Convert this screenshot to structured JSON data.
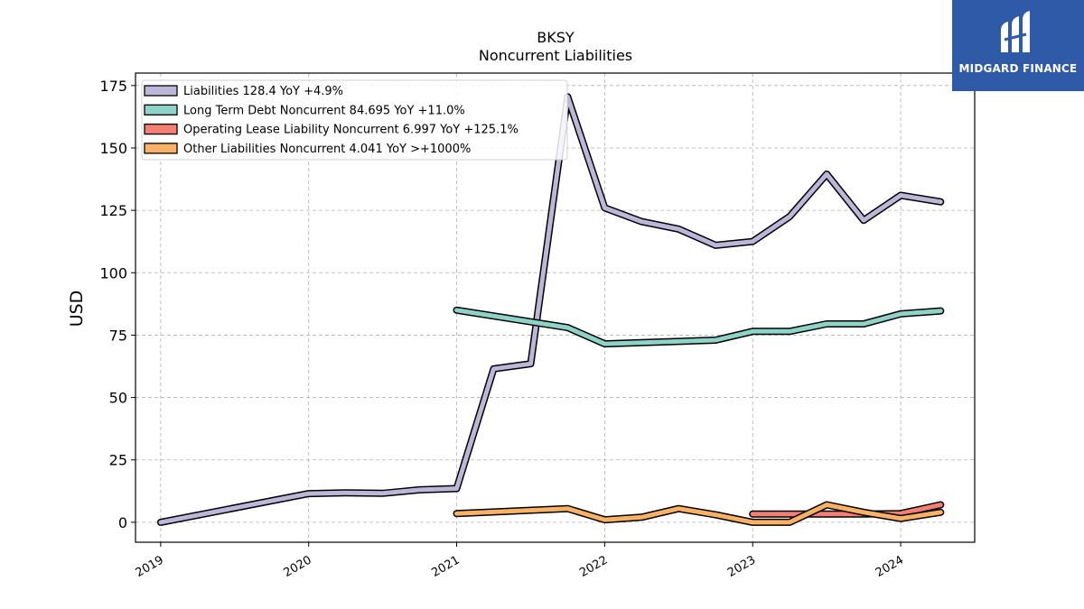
{
  "brand": {
    "name": "MIDGARD FINANCE",
    "bg_color": "#2f5aa8"
  },
  "chart_data": {
    "type": "line",
    "title": "BKSY",
    "subtitle": "Noncurrent  Liabilities",
    "xlabel": "",
    "ylabel": "USD",
    "ylim": [
      -8,
      180
    ],
    "xlim": [
      2018.83,
      2024.5
    ],
    "yticks": [
      0,
      25,
      50,
      75,
      100,
      125,
      150,
      175
    ],
    "xticks": [
      2019,
      2020,
      2021,
      2022,
      2023,
      2024
    ],
    "grid": true,
    "legend_position": "top-left",
    "series": [
      {
        "name": "Liabilities",
        "legend": "Liabilities  128.4 YoY +4.9%",
        "color": "#bcb6d9",
        "points": [
          [
            2019.0,
            0
          ],
          [
            2020.0,
            11.5
          ],
          [
            2020.25,
            11.8
          ],
          [
            2020.5,
            11.6
          ],
          [
            2020.75,
            13.0
          ],
          [
            2021.0,
            13.5
          ],
          [
            2021.25,
            61.5
          ],
          [
            2021.5,
            63.5
          ],
          [
            2021.75,
            170.5
          ],
          [
            2022.0,
            126.0
          ],
          [
            2022.25,
            120.5
          ],
          [
            2022.5,
            117.5
          ],
          [
            2022.75,
            111.0
          ],
          [
            2023.0,
            112.5
          ],
          [
            2023.25,
            122.5
          ],
          [
            2023.5,
            139.5
          ],
          [
            2023.75,
            121.0
          ],
          [
            2024.0,
            131.0
          ],
          [
            2024.27,
            128.4
          ]
        ]
      },
      {
        "name": "Long Term Debt Noncurrent",
        "legend": "Long Term Debt Noncurrent  84.695 YoY +11.0%",
        "color": "#8dd3c7",
        "points": [
          [
            2021.0,
            85.0
          ],
          [
            2021.75,
            78.0
          ],
          [
            2022.0,
            71.5
          ],
          [
            2022.75,
            73.0
          ],
          [
            2023.0,
            76.5
          ],
          [
            2023.25,
            76.5
          ],
          [
            2023.5,
            79.5
          ],
          [
            2023.75,
            79.5
          ],
          [
            2024.0,
            83.5
          ],
          [
            2024.27,
            84.7
          ]
        ]
      },
      {
        "name": "Operating Lease Liability Noncurrent",
        "legend": "Operating Lease Liability Noncurrent  6.997 YoY +125.1%",
        "color": "#f47f72",
        "points": [
          [
            2023.0,
            3.3
          ],
          [
            2023.25,
            3.3
          ],
          [
            2023.5,
            3.3
          ],
          [
            2023.75,
            3.3
          ],
          [
            2024.0,
            3.5
          ],
          [
            2024.27,
            7.0
          ]
        ]
      },
      {
        "name": "Other Liabilities Noncurrent",
        "legend": "Other Liabilities Noncurrent  4.041 YoY >+1000%",
        "color": "#fbb165",
        "points": [
          [
            2021.0,
            3.5
          ],
          [
            2021.75,
            5.5
          ],
          [
            2022.0,
            1.0
          ],
          [
            2022.25,
            2.0
          ],
          [
            2022.5,
            5.5
          ],
          [
            2022.75,
            3.0
          ],
          [
            2023.0,
            0.0
          ],
          [
            2023.25,
            0.0
          ],
          [
            2023.5,
            7.0
          ],
          [
            2023.75,
            4.0
          ],
          [
            2024.0,
            1.5
          ],
          [
            2024.27,
            4.0
          ]
        ]
      }
    ]
  }
}
